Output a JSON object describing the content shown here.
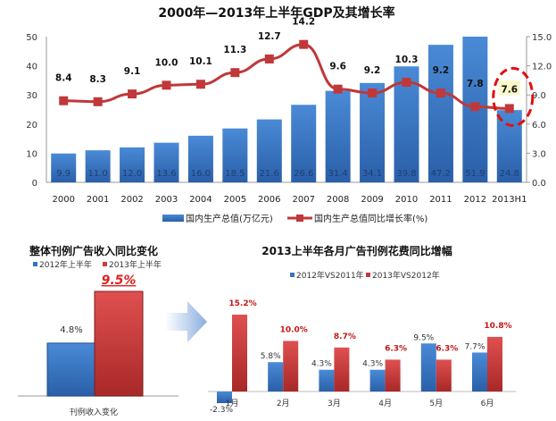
{
  "chart_data": [
    {
      "type": "bar+line",
      "title": "2000年—2013年上半年GDP及其增长率",
      "categories": [
        "2000",
        "2001",
        "2002",
        "2003",
        "2004",
        "2005",
        "2006",
        "2007",
        "2008",
        "2009",
        "2010",
        "2011",
        "2012",
        "2013H1"
      ],
      "series": [
        {
          "name": "国内生产总值(万亿元)",
          "type": "bar",
          "axis": "left",
          "color": "#3a78c4",
          "values": [
            9.9,
            11.0,
            12.0,
            13.6,
            16.0,
            18.5,
            21.6,
            26.6,
            31.4,
            34.1,
            39.8,
            47.2,
            51.9,
            24.8
          ]
        },
        {
          "name": "国内生产总值同比增长率(%)",
          "type": "line",
          "axis": "right",
          "color": "#c0383a",
          "values": [
            8.4,
            8.3,
            9.1,
            10.0,
            10.1,
            11.3,
            12.7,
            14.2,
            9.6,
            9.2,
            10.3,
            9.2,
            7.8,
            7.6
          ]
        }
      ],
      "ylim_left": [
        0,
        50
      ],
      "yticks_left": [
        "0",
        "10",
        "20",
        "30",
        "40",
        "50"
      ],
      "ylim_right": [
        0,
        15
      ],
      "yticks_right": [
        "0.0",
        "3.0",
        "6.0",
        "9.0",
        "12.0",
        "15.0"
      ],
      "legend": "bottom",
      "annotation": "dashed red circle around 2013H1 value 7.6"
    },
    {
      "type": "bar",
      "title": "整体刊例广告收入同比变化",
      "categories": [
        "刊例收入变化"
      ],
      "series": [
        {
          "name": "2012年上半年",
          "values": [
            4.8
          ],
          "label": "4.8%",
          "color": "#2e74c6"
        },
        {
          "name": "2013年上半年",
          "values": [
            9.5
          ],
          "label": "9.5%",
          "color": "#d03a3a"
        }
      ],
      "legend": "top-left"
    },
    {
      "type": "bar",
      "title": "2013上半年各月广告刊例花费同比增幅",
      "categories": [
        "1月",
        "2月",
        "3月",
        "4月",
        "5月",
        "6月"
      ],
      "series": [
        {
          "name": "2012年VS2011年",
          "values": [
            -2.3,
            5.8,
            4.3,
            4.3,
            9.5,
            7.7
          ],
          "labels": [
            "-2.3%",
            "5.8%",
            "4.3%",
            "4.3%",
            "9.5%",
            "7.7%"
          ],
          "color": "#3a72c0"
        },
        {
          "name": "2013年VS2012年",
          "values": [
            15.2,
            10.0,
            8.7,
            6.3,
            6.3,
            10.8
          ],
          "labels": [
            "15.2%",
            "10.0%",
            "8.7%",
            "6.3%",
            "6.3%",
            "10.8%"
          ],
          "color": "#c83838"
        }
      ],
      "legend": "top"
    }
  ]
}
